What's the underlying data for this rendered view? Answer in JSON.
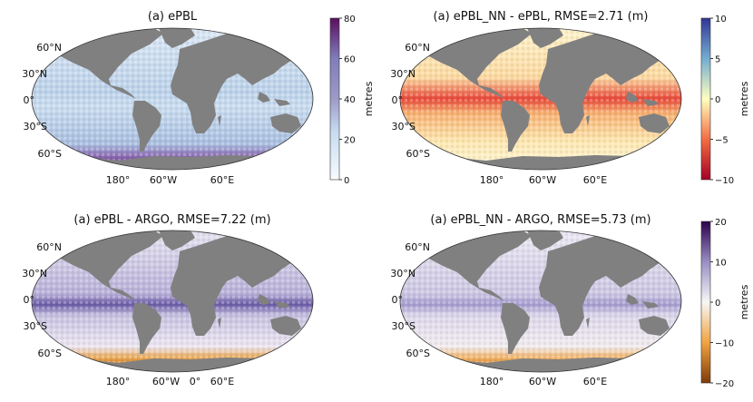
{
  "panels": [
    {
      "id": "p1",
      "title": "(a) ePBL",
      "colormap": "blues_purples_seq"
    },
    {
      "id": "p2",
      "title": "(a) ePBL_NN - ePBL, RMSE=2.71 (m)",
      "colormap": "red_yellow_blue_div"
    },
    {
      "id": "p3",
      "title": "(a) ePBL - ARGO, RMSE=7.22 (m)",
      "colormap": "orange_purple_div"
    },
    {
      "id": "p4",
      "title": "(a) ePBL_NN - ARGO, RMSE=5.73 (m)",
      "colormap": "orange_purple_div"
    }
  ],
  "lat_labels": [
    "60°N",
    "30°N",
    "0°",
    "30°S",
    "60°S"
  ],
  "lon_labels_top": [
    "180°",
    "60°W",
    "60°E"
  ],
  "lon_labels_bottom_left": [
    "180°",
    "60°W",
    "0°",
    "60°E"
  ],
  "lon_labels_bottom_right": [
    "180°",
    "60°W",
    "60°E"
  ],
  "colorbars": [
    {
      "id": "cb1",
      "label": "metres",
      "ticks": [
        "0",
        "20",
        "40",
        "60",
        "80"
      ],
      "range": [
        0,
        80
      ]
    },
    {
      "id": "cb2",
      "label": "metres",
      "ticks": [
        "−10",
        "−5",
        "0",
        "5",
        "10"
      ],
      "range": [
        -10,
        10
      ]
    },
    {
      "id": "cb3",
      "label": "metres",
      "ticks": [
        "−20",
        "−10",
        "0",
        "10",
        "20"
      ],
      "range": [
        -20,
        20
      ]
    }
  ],
  "colors": {
    "land": "#808080",
    "frame": "#333333"
  }
}
